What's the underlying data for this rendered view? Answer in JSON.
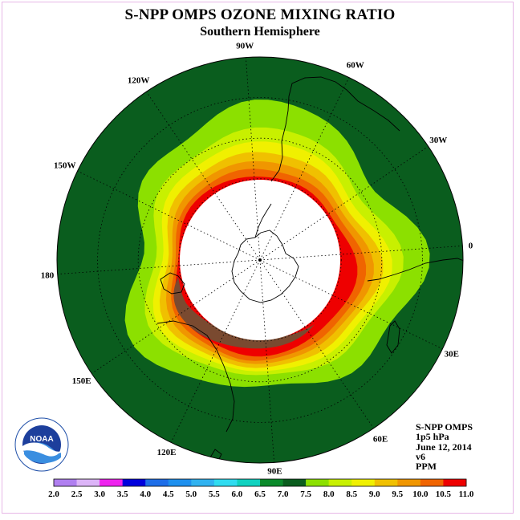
{
  "header": {
    "title": "S-NPP OMPS OZONE MIXING RATIO",
    "subtitle": "Southern Hemisphere"
  },
  "info": {
    "instrument": "S-NPP OMPS",
    "level": "1p5 hPa",
    "date": "June 12, 2014",
    "version": "v6",
    "units": "PPM"
  },
  "logo": {
    "text": "NOAA"
  },
  "longitude_labels": [
    {
      "text": "90W",
      "angle": -94,
      "r": 1.06
    },
    {
      "text": "60W",
      "angle": -64,
      "r": 1.07
    },
    {
      "text": "30W",
      "angle": -34,
      "r": 1.06
    },
    {
      "text": "0",
      "angle": -4,
      "r": 1.04
    },
    {
      "text": "30E",
      "angle": 26,
      "r": 1.05
    },
    {
      "text": "60E",
      "angle": 56,
      "r": 1.06
    },
    {
      "text": "90E",
      "angle": 86,
      "r": 1.04
    },
    {
      "text": "120E",
      "angle": 116,
      "r": 1.05
    },
    {
      "text": "150E",
      "angle": 146,
      "r": 1.06
    },
    {
      "text": "180",
      "angle": 176,
      "r": 1.05
    },
    {
      "text": "150W",
      "angle": 206,
      "r": 1.07
    },
    {
      "text": "120W",
      "angle": 236,
      "r": 1.07
    }
  ],
  "colorbar": {
    "ticks": [
      "2.0",
      "2.5",
      "3.0",
      "3.5",
      "4.0",
      "4.5",
      "5.0",
      "5.5",
      "6.0",
      "6.5",
      "7.0",
      "7.5",
      "8.0",
      "8.5",
      "9.0",
      "9.5",
      "10.0",
      "10.5",
      "11.0"
    ],
    "colors": [
      "#b07ff0",
      "#dcb4f7",
      "#ee22ee",
      "#0000dd",
      "#1e6ee8",
      "#1e90ee",
      "#30b2f0",
      "#30dcf0",
      "#10d2c0",
      "#0a8a2a",
      "#0a5d1e",
      "#8ce000",
      "#c8f000",
      "#f0f000",
      "#f0c000",
      "#f09600",
      "#f06400",
      "#ee0000",
      "#7a4a30"
    ]
  },
  "map_data": {
    "projection": "south polar stereographic",
    "background_level": "6.5–7.0",
    "bands": [
      "7.0–7.5",
      "7.5–8.0",
      "8.0–8.5",
      "8.5–9.0",
      "9.0–9.5",
      "9.5–10.0",
      "10.0–10.5",
      "10.5–11.0"
    ],
    "colors": {
      "bg": "#0a5d1e",
      "b1": "#8ce000",
      "b2": "#c8f000",
      "b3": "#f0f000",
      "b4": "#f0c000",
      "b5": "#f09600",
      "b6": "#f06400",
      "b7": "#ee0000",
      "b8": "#7a4a30"
    }
  }
}
